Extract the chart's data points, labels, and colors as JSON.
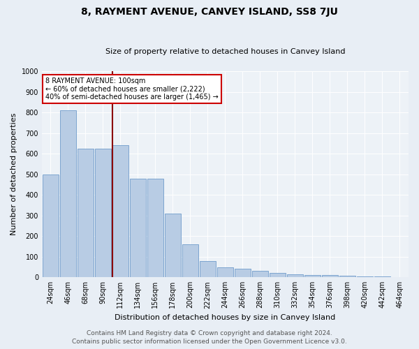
{
  "title": "8, RAYMENT AVENUE, CANVEY ISLAND, SS8 7JU",
  "subtitle": "Size of property relative to detached houses in Canvey Island",
  "xlabel": "Distribution of detached houses by size in Canvey Island",
  "ylabel": "Number of detached properties",
  "categories": [
    "24sqm",
    "46sqm",
    "68sqm",
    "90sqm",
    "112sqm",
    "134sqm",
    "156sqm",
    "178sqm",
    "200sqm",
    "222sqm",
    "244sqm",
    "266sqm",
    "288sqm",
    "310sqm",
    "332sqm",
    "354sqm",
    "376sqm",
    "398sqm",
    "420sqm",
    "442sqm",
    "464sqm"
  ],
  "values": [
    500,
    810,
    625,
    625,
    640,
    480,
    480,
    310,
    160,
    80,
    50,
    40,
    30,
    20,
    15,
    12,
    10,
    8,
    5,
    3,
    2
  ],
  "bar_color": "#b8cce4",
  "bar_edge_color": "#5b8ec4",
  "vline_pos": 3.55,
  "vline_color": "#8b0000",
  "annotation_title": "8 RAYMENT AVENUE: 100sqm",
  "annotation_line1": "← 60% of detached houses are smaller (2,222)",
  "annotation_line2": "40% of semi-detached houses are larger (1,465) →",
  "annotation_box_color": "#ffffff",
  "annotation_box_edge": "#cc0000",
  "ylim": [
    0,
    1000
  ],
  "yticks": [
    0,
    100,
    200,
    300,
    400,
    500,
    600,
    700,
    800,
    900,
    1000
  ],
  "footer1": "Contains HM Land Registry data © Crown copyright and database right 2024.",
  "footer2": "Contains public sector information licensed under the Open Government Licence v3.0.",
  "bg_color": "#e8eef5",
  "plot_bg_color": "#edf2f7",
  "grid_color": "#ffffff",
  "title_fontsize": 10,
  "subtitle_fontsize": 8,
  "ylabel_fontsize": 8,
  "xlabel_fontsize": 8,
  "tick_fontsize": 7,
  "footer_fontsize": 6.5
}
